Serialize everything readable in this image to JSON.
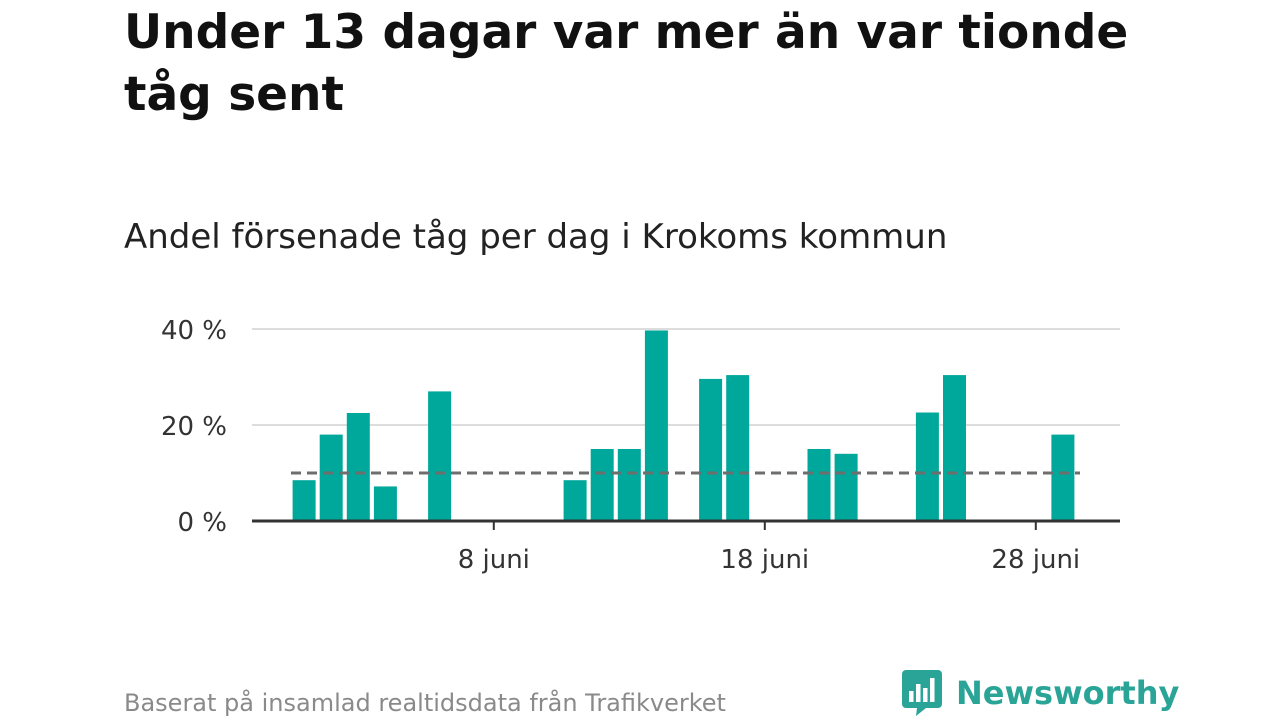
{
  "headline": "Under 13 dagar var mer än var tionde tåg sent",
  "subtitle": "Andel försenade tåg per dag i Krokoms kommun",
  "footer": {
    "source": "Baserat på insamlad realtidsdata från Trafikverket",
    "brand": "Newsworthy",
    "brand_logo": "newsworthy-bar-chart-speech-bubble-icon"
  },
  "colors": {
    "bar": "#00a79b",
    "reference_line": "#6e6e6e",
    "grid": "#dddddd",
    "axis": "#333333",
    "brand": "#2aa497"
  },
  "chart_data": {
    "type": "bar",
    "xlabel": "",
    "ylabel": "",
    "y_unit": "%",
    "ylim": [
      0,
      40
    ],
    "y_ticks": [
      {
        "value": 0,
        "label": "0 %"
      },
      {
        "value": 20,
        "label": "20 %"
      },
      {
        "value": 40,
        "label": "40 %"
      }
    ],
    "x_ticks": [
      {
        "day": 8,
        "label": "8 juni"
      },
      {
        "day": 18,
        "label": "18 juni"
      },
      {
        "day": 28,
        "label": "28 juni"
      }
    ],
    "grid": true,
    "reference_line": {
      "value": 10,
      "style": "dashed"
    },
    "bars": [
      {
        "day": 1,
        "value": 8.5
      },
      {
        "day": 2,
        "value": 18
      },
      {
        "day": 3,
        "value": 22.5
      },
      {
        "day": 4,
        "value": 7.2
      },
      {
        "day": 6,
        "value": 27
      },
      {
        "day": 11,
        "value": 8.5
      },
      {
        "day": 12,
        "value": 15
      },
      {
        "day": 13,
        "value": 15
      },
      {
        "day": 14,
        "value": 39.7
      },
      {
        "day": 16,
        "value": 29.6
      },
      {
        "day": 17,
        "value": 30.4
      },
      {
        "day": 20,
        "value": 15
      },
      {
        "day": 21,
        "value": 14
      },
      {
        "day": 24,
        "value": 22.6
      },
      {
        "day": 25,
        "value": 30.4
      },
      {
        "day": 29,
        "value": 18
      }
    ]
  }
}
